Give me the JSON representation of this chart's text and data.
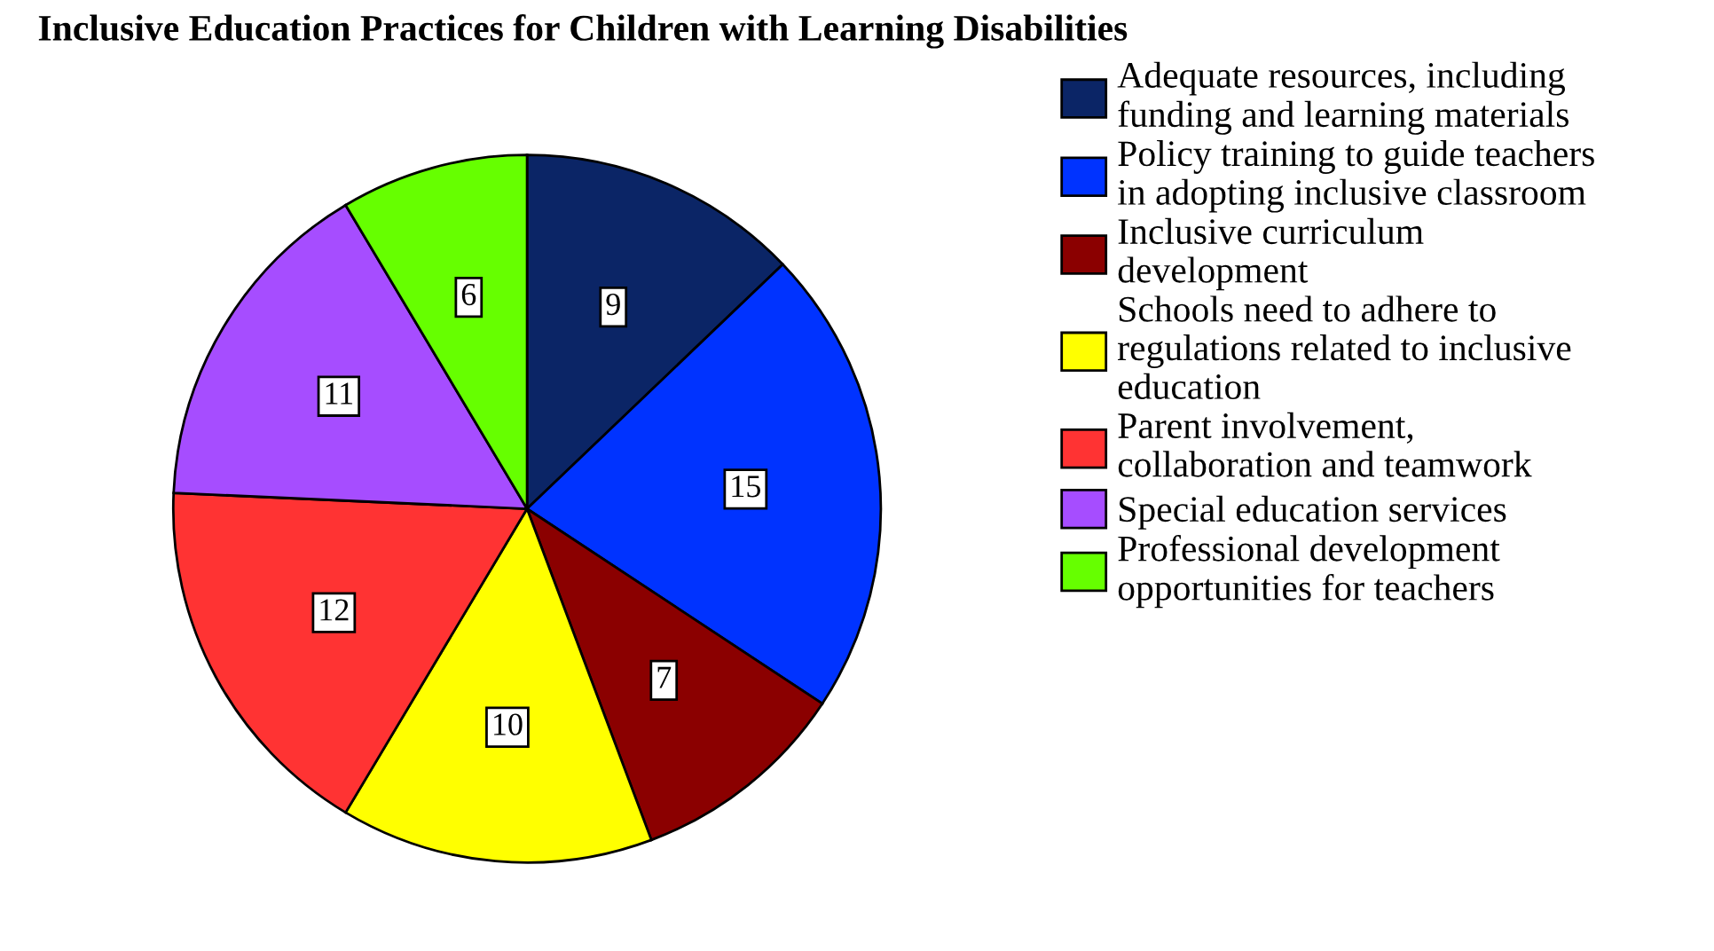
{
  "chart_data": {
    "type": "pie",
    "title": "Inclusive Education Practices for Children with Learning Disabilities",
    "categories": [
      "Adequate resources, including\nfunding and learning materials",
      "Policy training to guide teachers\nin adopting inclusive classroom",
      "Inclusive curriculum\ndevelopment",
      "Schools need to adhere to\nregulations related to inclusive\neducation",
      "Parent involvement,\ncollaboration and teamwork",
      "Special education services",
      "Professional development\nopportunities for teachers"
    ],
    "values": [
      9,
      15,
      7,
      10,
      12,
      11,
      6
    ],
    "colors": [
      "#0b2566",
      "#0033ff",
      "#8b0000",
      "#ffff00",
      "#ff3333",
      "#a64dff",
      "#66ff00"
    ],
    "data_labels": true,
    "legend": "right"
  }
}
